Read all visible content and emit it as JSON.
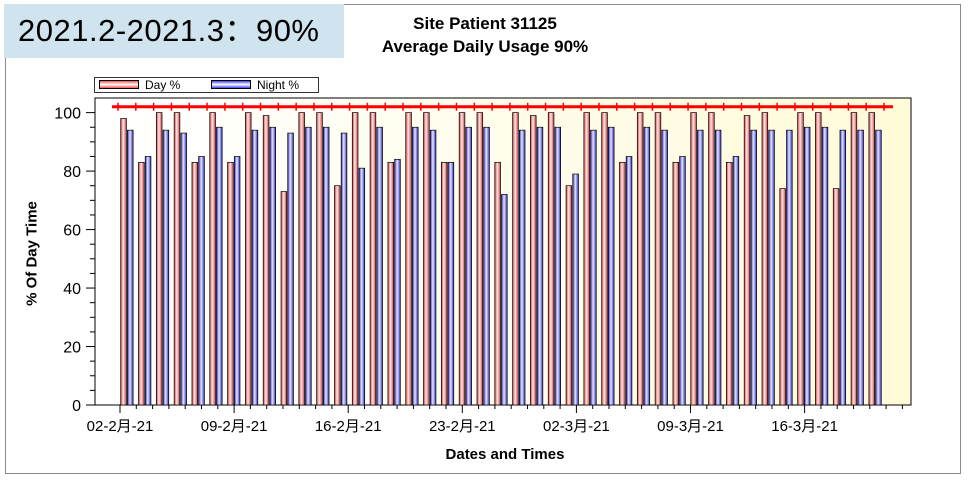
{
  "overlay_label": "2021.2-2021.3：90%",
  "chart_data": {
    "type": "bar",
    "title": "Site Patient 31125",
    "subtitle": "Average Daily Usage 90%",
    "xlabel": "Dates and Times",
    "ylabel": "% Of Day Time",
    "ylim": [
      0,
      105
    ],
    "yticks": [
      0,
      20,
      40,
      60,
      80,
      100
    ],
    "x_tick_labels": [
      "02-2月-21",
      "09-2月-21",
      "16-2月-21",
      "23-2月-21",
      "02-3月-21",
      "09-3月-21",
      "16-3月-21"
    ],
    "legend": {
      "placement": "top-left"
    },
    "reference_line": 102,
    "colors": {
      "day": "#e88080",
      "night": "#8080e0",
      "reference": "#ff0000",
      "plot_bg": "#fffbd8"
    },
    "series": [
      {
        "name": "Day %",
        "values": [
          98,
          83,
          100,
          100,
          83,
          100,
          83,
          100,
          99,
          73,
          100,
          100,
          75,
          100,
          100,
          83,
          100,
          100,
          83,
          100,
          100,
          83,
          100,
          99,
          100,
          75,
          100,
          100,
          83,
          100,
          100,
          83,
          100,
          100,
          83,
          99,
          100,
          74,
          100,
          100,
          74,
          100,
          100
        ]
      },
      {
        "name": "Night %",
        "values": [
          94,
          85,
          94,
          93,
          85,
          95,
          85,
          94,
          95,
          93,
          95,
          95,
          93,
          81,
          95,
          84,
          95,
          94,
          83,
          95,
          95,
          72,
          94,
          95,
          95,
          79,
          94,
          95,
          85,
          95,
          94,
          85,
          94,
          94,
          85,
          94,
          94,
          94,
          95,
          95,
          94,
          94,
          94
        ]
      }
    ]
  }
}
